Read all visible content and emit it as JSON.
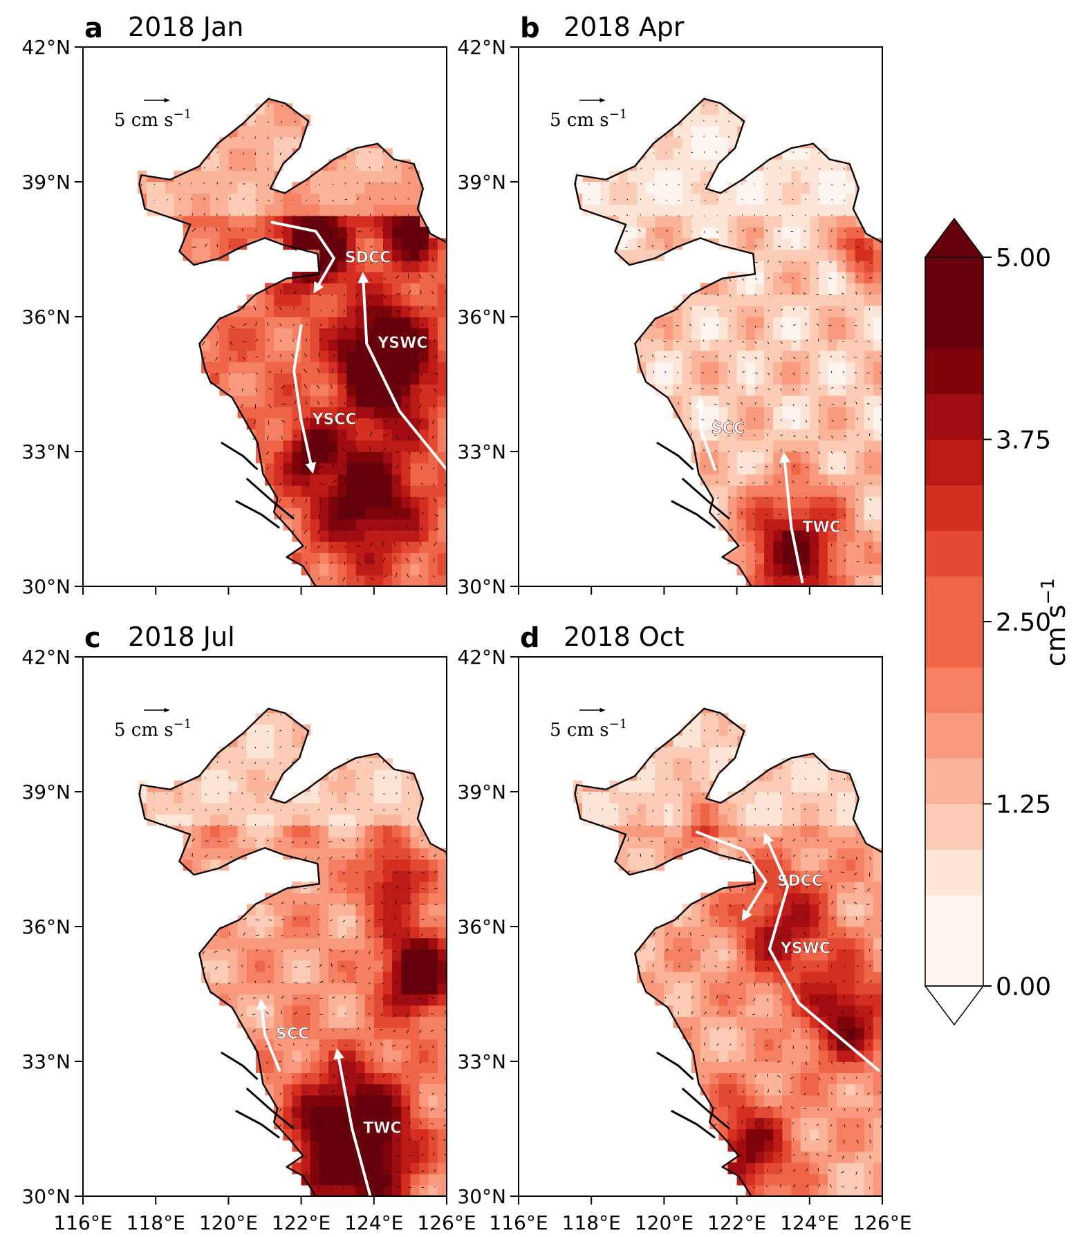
{
  "figure": {
    "lat_ticks": [
      "42°N",
      "39°N",
      "36°N",
      "33°N",
      "30°N"
    ],
    "lon_ticks": [
      "116°E",
      "118°E",
      "120°E",
      "122°E",
      "124°E",
      "126°E"
    ],
    "lat_values": [
      42,
      39,
      36,
      33,
      30
    ],
    "lon_values": [
      116,
      118,
      120,
      122,
      124,
      126
    ],
    "scale_label": "5 cm s",
    "scale_exponent": "−1",
    "scale_reference_speed_cm_s": 5
  },
  "panels": [
    {
      "letter": "a",
      "title": "2018 Jan",
      "intensity": 0.85,
      "currents": [
        {
          "label": "SDCC",
          "path": [
            [
              121.2,
              38.1
            ],
            [
              122.4,
              37.9
            ],
            [
              122.9,
              37.3
            ],
            [
              122.4,
              36.6
            ]
          ]
        },
        {
          "label": "YSCC",
          "path": [
            [
              122,
              35.8
            ],
            [
              121.8,
              34.8
            ],
            [
              122,
              33.7
            ],
            [
              122.3,
              32.6
            ]
          ]
        },
        {
          "label": "YSWC",
          "path": [
            [
              126,
              32.6
            ],
            [
              124.7,
              33.9
            ],
            [
              123.8,
              35.4
            ],
            [
              123.7,
              36.9
            ]
          ]
        }
      ]
    },
    {
      "letter": "b",
      "title": "2018 Apr",
      "intensity": 0.35,
      "currents": [
        {
          "label": "SCC",
          "path": [
            [
              121.4,
              32.6
            ],
            [
              121,
              33.5
            ],
            [
              121,
              34.1
            ]
          ]
        },
        {
          "label": "TWC",
          "path": [
            [
              123.8,
              30.1
            ],
            [
              123.5,
              31.3
            ],
            [
              123.3,
              32.9
            ]
          ]
        }
      ]
    },
    {
      "letter": "c",
      "title": "2018 Jul",
      "intensity": 0.6,
      "currents": [
        {
          "label": "SCC",
          "path": [
            [
              121.4,
              32.8
            ],
            [
              121,
              33.6
            ],
            [
              120.9,
              34.3
            ]
          ]
        },
        {
          "label": "TWC",
          "path": [
            [
              123.9,
              30
            ],
            [
              123.4,
              31.5
            ],
            [
              123,
              33.2
            ]
          ]
        }
      ]
    },
    {
      "letter": "d",
      "title": "2018 Oct",
      "intensity": 0.55,
      "currents": [
        {
          "label": "SDCC",
          "path": [
            [
              120.9,
              38.1
            ],
            [
              122.2,
              37.7
            ],
            [
              122.8,
              37
            ],
            [
              122.2,
              36.2
            ]
          ]
        },
        {
          "label": "YSWC",
          "path": [
            [
              125.9,
              32.8
            ],
            [
              123.7,
              34.3
            ],
            [
              122.9,
              35.5
            ],
            [
              123.4,
              36.9
            ],
            [
              122.8,
              38
            ]
          ]
        }
      ]
    }
  ],
  "colorbar": {
    "min": 0,
    "max": 5,
    "levels": 16,
    "ticks": [
      "5.00",
      "3.75",
      "2.50",
      "1.25",
      "0.00"
    ],
    "tick_values": [
      5,
      3.75,
      2.5,
      1.25,
      0
    ],
    "unit_label": "cm s",
    "unit_exponent": "−1",
    "colors_light_to_dark": [
      "#fff5f0",
      "#fde5d8",
      "#fcccb6",
      "#fbb49a",
      "#f99a7e",
      "#f57f62",
      "#ef6548",
      "#e34a33",
      "#d42f21",
      "#bc1a17",
      "#a10c12",
      "#7f0409",
      "#67000d"
    ]
  }
}
